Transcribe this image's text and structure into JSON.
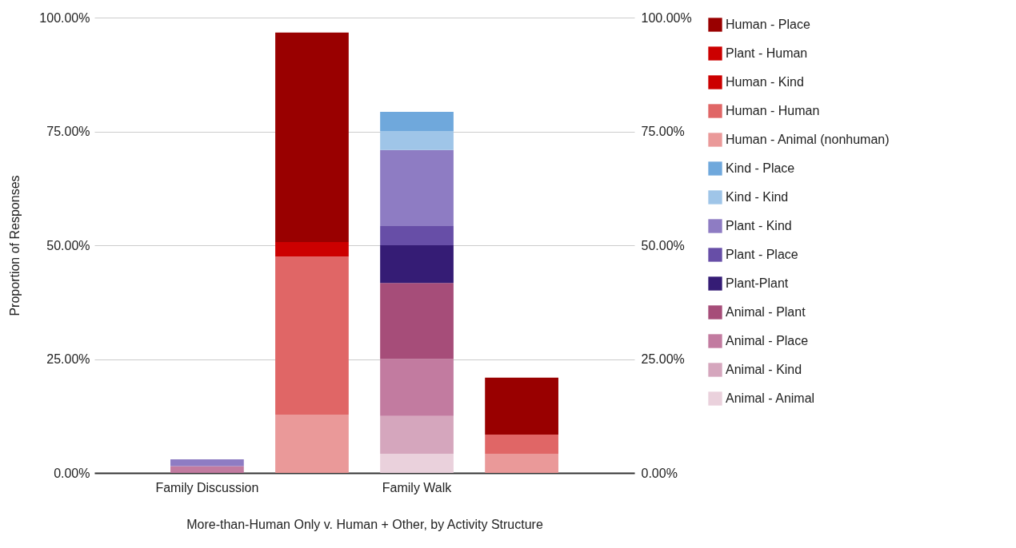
{
  "chart_data": {
    "type": "bar",
    "stacked": true,
    "xlabel": "More-than-Human Only v. Human + Other, by Activity Structure",
    "ylabel": "Proportion of Responses",
    "categories": [
      "Family Discussion",
      null,
      "Family Walk",
      null
    ],
    "series": [
      {
        "name": "Animal - Animal",
        "color": "#ead1dc",
        "values": [
          null,
          null,
          4.2,
          null
        ]
      },
      {
        "name": "Animal - Kind",
        "color": "#d5a6bd",
        "values": [
          null,
          null,
          8.3,
          null
        ]
      },
      {
        "name": "Animal - Place",
        "color": "#c27ba0",
        "values": [
          1.5,
          null,
          12.5,
          null
        ]
      },
      {
        "name": "Animal - Plant",
        "color": "#a64d79",
        "values": [
          null,
          null,
          16.7,
          null
        ]
      },
      {
        "name": "Plant-Plant",
        "color": "#351c75",
        "values": [
          null,
          null,
          8.3,
          null
        ]
      },
      {
        "name": "Plant - Place",
        "color": "#674ea7",
        "values": [
          null,
          null,
          4.2,
          null
        ]
      },
      {
        "name": "Plant - Kind",
        "color": "#8e7cc3",
        "values": [
          1.5,
          null,
          16.7,
          null
        ]
      },
      {
        "name": "Kind - Kind",
        "color": "#9fc5e8",
        "values": [
          null,
          null,
          4.2,
          null
        ]
      },
      {
        "name": "Kind - Place",
        "color": "#6fa8dc",
        "values": [
          null,
          null,
          4.2,
          null
        ]
      },
      {
        "name": "Human - Animal (nonhuman)",
        "color": "#ea9999",
        "values": [
          null,
          12.8,
          null,
          4.2
        ]
      },
      {
        "name": "Human - Human",
        "color": "#e06666",
        "values": [
          null,
          34.7,
          null,
          4.2
        ]
      },
      {
        "name": "Human - Kind",
        "color": "#cc0000",
        "values": [
          null,
          null,
          null,
          null
        ]
      },
      {
        "name": "Plant - Human",
        "color": "#cc0000",
        "values": [
          null,
          3.2,
          null,
          null
        ]
      },
      {
        "name": "Human - Place",
        "color": "#990000",
        "values": [
          null,
          46,
          null,
          12.5
        ]
      }
    ],
    "ylim": [
      0,
      100
    ],
    "yticks": [
      {
        "value": 0,
        "label": "0.00%"
      },
      {
        "value": 25,
        "label": "25.00%"
      },
      {
        "value": 50,
        "label": "50.00%"
      },
      {
        "value": 75,
        "label": "75.00%"
      },
      {
        "value": 100,
        "label": "100.00%"
      }
    ],
    "y2lim": [
      0,
      100
    ],
    "y2ticks": [
      {
        "value": 0,
        "label": "0.00%"
      },
      {
        "value": 25,
        "label": "25.00%"
      },
      {
        "value": 50,
        "label": "50.00%"
      },
      {
        "value": 75,
        "label": "75.00%"
      },
      {
        "value": 100,
        "label": "100.00%"
      }
    ],
    "grid": "y",
    "legend": "right"
  }
}
